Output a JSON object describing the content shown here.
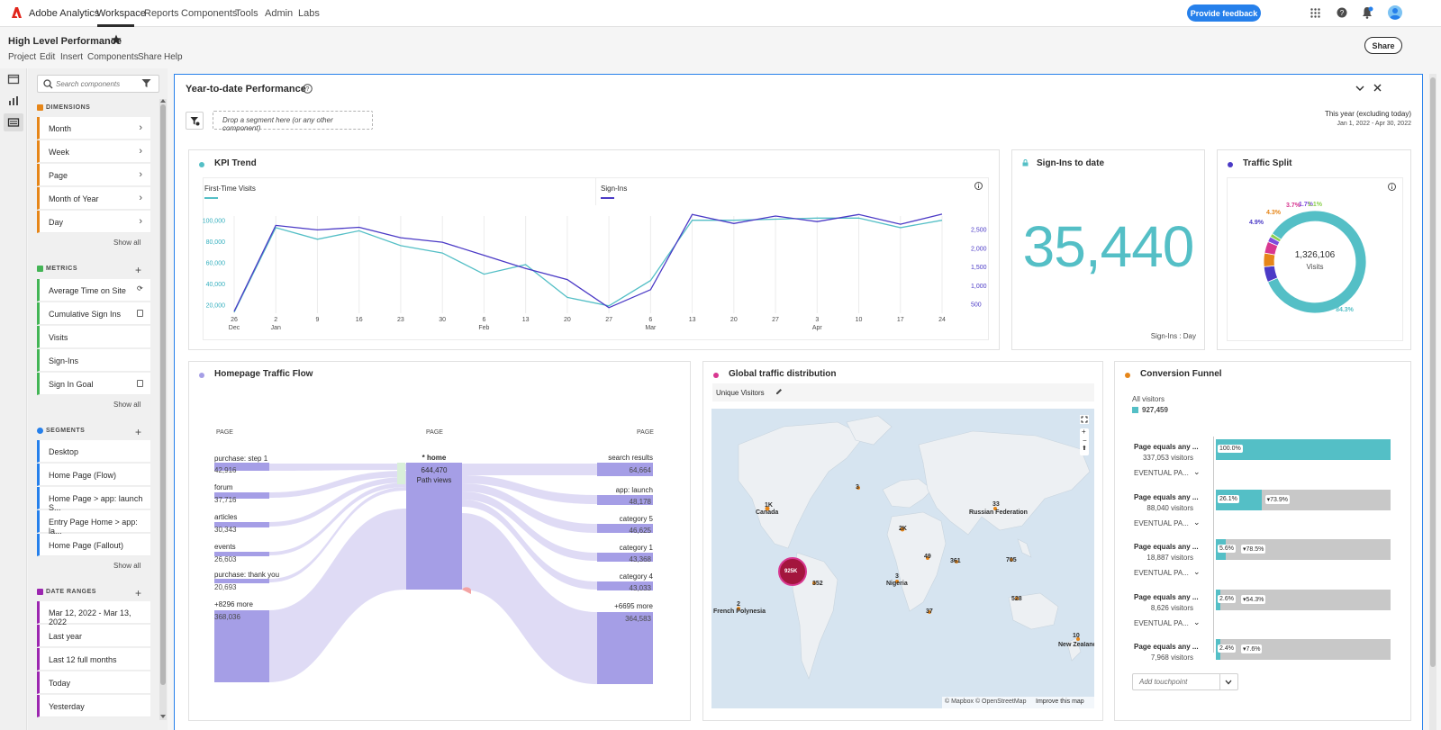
{
  "topnav": {
    "brand": "Adobe Analytics",
    "items": [
      "Workspace",
      "Reports",
      "Components",
      "Tools",
      "Admin",
      "Labs"
    ],
    "feedback": "Provide feedback"
  },
  "project": {
    "title": "High Level Performance",
    "menu": [
      "Project",
      "Edit",
      "Insert",
      "Components",
      "Share",
      "Help"
    ],
    "share": "Share"
  },
  "left": {
    "search_placeholder": "Search components",
    "dimensions": {
      "title": "DIMENSIONS",
      "items": [
        "Month",
        "Week",
        "Page",
        "Month of Year",
        "Day"
      ],
      "show_all": "Show all"
    },
    "metrics": {
      "title": "METRICS",
      "items": [
        "Average Time on Site",
        "Cumulative Sign Ins",
        "Visits",
        "Sign-Ins",
        "Sign In Goal"
      ],
      "show_all": "Show all"
    },
    "segments": {
      "title": "SEGMENTS",
      "items": [
        "Desktop",
        "Home Page (Flow)",
        "Home Page > app: launch S...",
        "Entry Page Home > app: la...",
        "Home Page (Fallout)"
      ],
      "show_all": "Show all"
    },
    "dateranges": {
      "title": "DATE RANGES",
      "items": [
        "Mar 12, 2022 - Mar 13, 2022",
        "Last year",
        "Last 12 full months",
        "Today",
        "Yesterday"
      ]
    },
    "colors": {
      "dimensions": "#e68619",
      "metrics": "#44b556",
      "segments": "#2680eb",
      "dateranges": "#9c27b0"
    }
  },
  "canvas": {
    "title": "Year-to-date Performance",
    "dropzone": "Drop a segment here (or any other component)",
    "daterange_label": "This year (excluding today)",
    "daterange_value": "Jan 1, 2022 - Apr 30, 2022"
  },
  "kpi": {
    "title": "KPI Trend",
    "legend": [
      "First-Time Visits",
      "Sign-Ins"
    ],
    "colors": {
      "visits": "#54bfc6",
      "signins": "#4b3ac6"
    },
    "chart_data": {
      "type": "line",
      "x": [
        "26 Dec",
        "2 Jan",
        "9",
        "16",
        "23",
        "30",
        "6 Feb",
        "13",
        "20",
        "27",
        "6 Mar",
        "13",
        "20",
        "27",
        "3 Apr",
        "10",
        "17",
        "24"
      ],
      "tick_labels": {
        "x_top": [
          "26",
          "2",
          "9",
          "16",
          "23",
          "30",
          "6",
          "13",
          "20",
          "27",
          "6",
          "13",
          "20",
          "27",
          "3",
          "10",
          "17",
          "24"
        ],
        "x_month": [
          "Dec",
          "Jan",
          "",
          "",
          "",
          "",
          "Feb",
          "",
          "",
          "",
          "Mar",
          "",
          "",
          "",
          "Apr",
          "",
          "",
          ""
        ],
        "y_left": [
          "100,000",
          "80,000",
          "60,000",
          "40,000",
          "20,000"
        ],
        "y_right": [
          "2,500",
          "2,000",
          "1,500",
          "1,000",
          "500"
        ]
      },
      "ylim_left": [
        12000,
        104000
      ],
      "ylim_right": [
        250,
        2850
      ],
      "series": [
        {
          "name": "First-Time Visits",
          "axis": "left",
          "values": [
            13000,
            93000,
            82000,
            90000,
            76000,
            69000,
            49000,
            58000,
            27000,
            19000,
            43000,
            100000,
            100000,
            101000,
            102000,
            102000,
            93000,
            100000
          ]
        },
        {
          "name": "Sign-Ins",
          "axis": "right",
          "values": [
            300,
            2600,
            2480,
            2550,
            2270,
            2150,
            1800,
            1450,
            1150,
            400,
            880,
            2890,
            2650,
            2850,
            2700,
            2890,
            2630,
            2900
          ]
        }
      ]
    }
  },
  "signins": {
    "title": "Sign-Ins to date",
    "value": "35,440",
    "footer": "Sign-Ins : Day"
  },
  "traffic": {
    "title": "Traffic Split",
    "total": "1,326,106",
    "total_label": "Visits",
    "chart_data": {
      "type": "pie",
      "slices": [
        {
          "label": "84.3%",
          "value": 84.3,
          "color": "#54bfc6"
        },
        {
          "label": "4.9%",
          "value": 4.9,
          "color": "#4b3ac6"
        },
        {
          "label": "4.3%",
          "value": 4.3,
          "color": "#e68619"
        },
        {
          "label": "3.7%",
          "value": 3.7,
          "color": "#d83790"
        },
        {
          "label": "1.7%",
          "value": 1.7,
          "color": "#7e4cde"
        },
        {
          "label": "1.1%",
          "value": 1.1,
          "color": "#8bd04e"
        }
      ]
    }
  },
  "flow": {
    "title": "Homepage Traffic Flow",
    "col_label": "PAGE",
    "center": {
      "label": "* home",
      "value": "644,470",
      "sub": "Path views"
    },
    "left_nodes": [
      {
        "label": "purchase: step 1",
        "value": "42,916"
      },
      {
        "label": "forum",
        "value": "37,716"
      },
      {
        "label": "articles",
        "value": "30,343"
      },
      {
        "label": "events",
        "value": "26,603"
      },
      {
        "label": "purchase: thank you",
        "value": "20,693"
      },
      {
        "label": "+8296 more",
        "value": "368,036"
      }
    ],
    "right_nodes": [
      {
        "label": "search results",
        "value": "64,664"
      },
      {
        "label": "app: launch",
        "value": "48,178"
      },
      {
        "label": "category 5",
        "value": "46,625"
      },
      {
        "label": "category 1",
        "value": "43,368"
      },
      {
        "label": "category 4",
        "value": "43,033"
      },
      {
        "label": "+6695 more",
        "value": "364,583"
      }
    ]
  },
  "map": {
    "title": "Global traffic distribution",
    "metric": "Unique Visitors",
    "attribution": "© Mapbox © OpenStreetMap",
    "improve": "Improve this map",
    "markers": [
      {
        "value": "1K",
        "place": "Canada"
      },
      {
        "value": "3",
        "place": ""
      },
      {
        "value": "33",
        "place": "Russian Federation"
      },
      {
        "value": "2K",
        "place": ""
      },
      {
        "value": "49",
        "place": ""
      },
      {
        "value": "361",
        "place": ""
      },
      {
        "value": "705",
        "place": ""
      },
      {
        "value": "925K",
        "place": ""
      },
      {
        "value": "352",
        "place": ""
      },
      {
        "value": "3",
        "place": "Nigeria"
      },
      {
        "value": "528",
        "place": ""
      },
      {
        "value": "2",
        "place": "French Polynesia"
      },
      {
        "value": "37",
        "place": ""
      },
      {
        "value": "10",
        "place": "New Zealand"
      }
    ]
  },
  "funnel": {
    "title": "Conversion Funnel",
    "all_label": "All visitors",
    "all_value": "927,459",
    "add": "Add touchpoint",
    "steps": [
      {
        "name": "Page equals any ...",
        "visitors": "337,053 visitors",
        "pct": "100.0%",
        "fill": 1.0,
        "drop": "",
        "sub": "EVENTUAL PA..."
      },
      {
        "name": "Page equals any ...",
        "visitors": "88,040 visitors",
        "pct": "26.1%",
        "fill": 0.261,
        "drop": "▾73.9%",
        "sub": "EVENTUAL PA..."
      },
      {
        "name": "Page equals any ...",
        "visitors": "18,887 visitors",
        "pct": "5.6%",
        "fill": 0.056,
        "drop": "▾78.5%",
        "sub": "EVENTUAL PA..."
      },
      {
        "name": "Page equals any ...",
        "visitors": "8,626 visitors",
        "pct": "2.6%",
        "fill": 0.026,
        "drop": "▾54.3%",
        "sub": "EVENTUAL PA..."
      },
      {
        "name": "Page equals any ...",
        "visitors": "7,968 visitors",
        "pct": "2.4%",
        "fill": 0.024,
        "drop": "▾7.6%",
        "sub": ""
      }
    ]
  }
}
